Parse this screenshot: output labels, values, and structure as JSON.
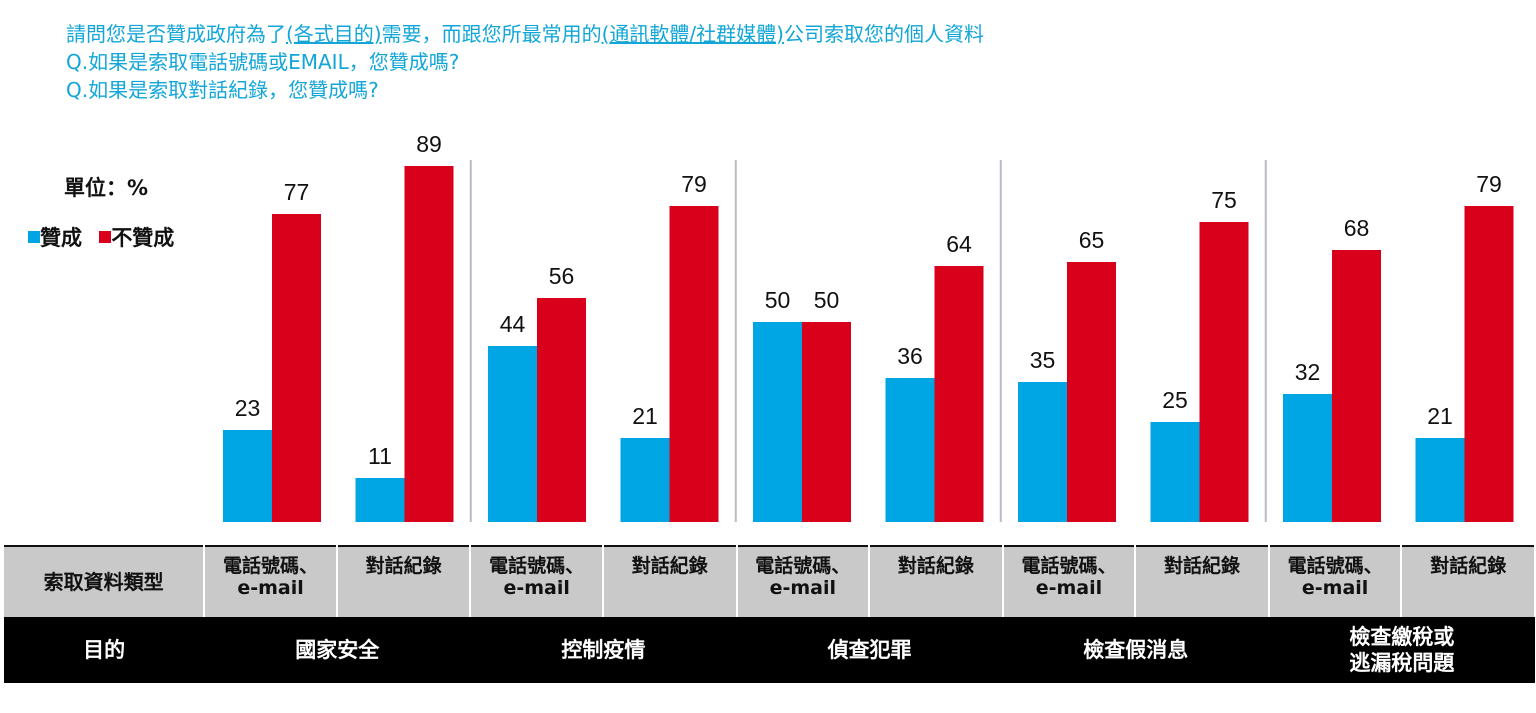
{
  "header": {
    "line1_pre": "請問您是否贊成政府為了",
    "line1_u1": "(各式目的)",
    "line1_mid": "需要，而跟您所最常用的",
    "line1_u2": "(通訊軟體/社群媒體)",
    "line1_post": "公司索取您的個人資料",
    "line2": "Q.如果是索取電話號碼或EMAIL，您贊成嗎?",
    "line3": "Q.如果是索取對話紀錄，您贊成嗎?"
  },
  "unit_label": "單位：%",
  "legend": {
    "agree": "贊成",
    "disagree": "不贊成"
  },
  "colors": {
    "agree": "#00a6e4",
    "disagree": "#d9001b",
    "header": "#12a6d8",
    "divider": "#b9bcc4",
    "type_row": "#c9c9c9",
    "purpose_row": "#000000"
  },
  "table": {
    "type_header": "索取資料類型",
    "purpose_header": "目的",
    "phone_line1": "電話號碼、",
    "phone_line2": "e-mail",
    "chat": "對話紀錄",
    "purposes": [
      "國家安全",
      "控制疫情",
      "偵查犯罪",
      "檢查假消息"
    ],
    "tax_line1": "檢查繳稅或",
    "tax_line2": "逃漏稅問題"
  },
  "chart_data": {
    "type": "bar",
    "categories": [
      "國家安全 電話號碼、e-mail",
      "國家安全 對話紀錄",
      "控制疫情 電話號碼、e-mail",
      "控制疫情 對話紀錄",
      "偵查犯罪 電話號碼、e-mail",
      "偵查犯罪 對話紀錄",
      "檢查假消息 電話號碼、e-mail",
      "檢查假消息 對話紀錄",
      "檢查繳稅或逃漏稅問題 電話號碼、e-mail",
      "檢查繳稅或逃漏稅問題 對話紀錄"
    ],
    "series": [
      {
        "name": "贊成",
        "values": [
          23,
          11,
          44,
          21,
          50,
          36,
          35,
          25,
          32,
          21
        ]
      },
      {
        "name": "不贊成",
        "values": [
          77,
          89,
          56,
          79,
          50,
          64,
          65,
          75,
          68,
          79
        ]
      }
    ],
    "ylim": [
      0,
      100
    ],
    "grid": false,
    "legend_position": "left"
  }
}
